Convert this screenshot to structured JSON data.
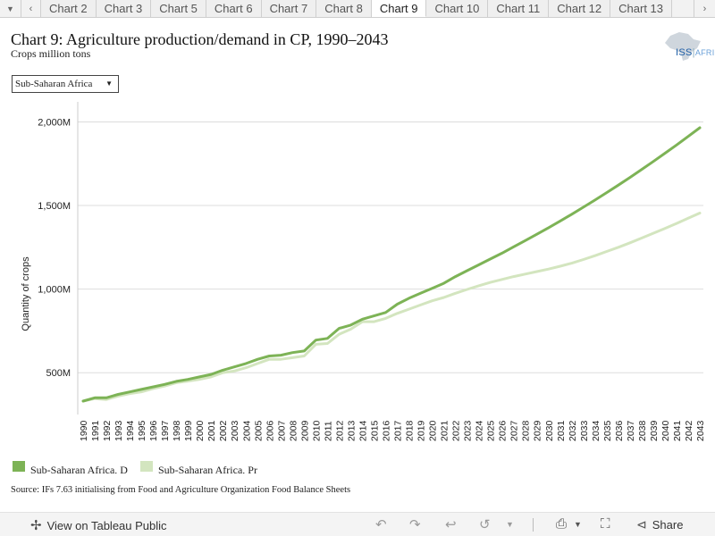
{
  "tabs": {
    "items": [
      "Chart 2",
      "Chart 3",
      "Chart 5",
      "Chart 6",
      "Chart 7",
      "Chart 8",
      "Chart 9",
      "Chart 10",
      "Chart 11",
      "Chart 12",
      "Chart 13"
    ],
    "active": "Chart 9",
    "menu_icon": "caret-down-icon",
    "prev_icon": "chevron-left-icon",
    "next_icon": "chevron-right-icon"
  },
  "header": {
    "title": "Chart 9: Agriculture production/demand in CP, 1990–2043",
    "subtitle": "Crops million tons",
    "logo_text": "ISS",
    "logo_suffix": "AFRICA"
  },
  "filter": {
    "selected": "Sub-Saharan Africa"
  },
  "chart_data": {
    "type": "line",
    "ylabel": "Quantity of crops",
    "y_ticks": [
      "500M",
      "1,000M",
      "1,500M",
      "2,000M"
    ],
    "y_tick_values": [
      500,
      1000,
      1500,
      2000
    ],
    "ylim": [
      250,
      2120
    ],
    "grid": true,
    "legend_position": "bottom-left",
    "x": [
      "1990",
      "1991",
      "1992",
      "1993",
      "1994",
      "1995",
      "1996",
      "1997",
      "1998",
      "1999",
      "2000",
      "2001",
      "2002",
      "2003",
      "2004",
      "2005",
      "2006",
      "2007",
      "2008",
      "2009",
      "2010",
      "2011",
      "2012",
      "2013",
      "2014",
      "2015",
      "2016",
      "2017",
      "2018",
      "2019",
      "2020",
      "2021",
      "2022",
      "2023",
      "2024",
      "2025",
      "2026",
      "2027",
      "2028",
      "2029",
      "2030",
      "2031",
      "2032",
      "2033",
      "2034",
      "2035",
      "2036",
      "2037",
      "2038",
      "2039",
      "2040",
      "2041",
      "2042",
      "2043"
    ],
    "series": [
      {
        "name": "Sub-Saharan Africa, D",
        "color": "#7db356",
        "values": [
          330,
          350,
          350,
          370,
          385,
          400,
          415,
          430,
          448,
          460,
          475,
          490,
          515,
          535,
          555,
          580,
          600,
          605,
          620,
          630,
          695,
          705,
          765,
          785,
          820,
          840,
          860,
          910,
          945,
          975,
          1005,
          1035,
          1075,
          1110,
          1145,
          1180,
          1215,
          1253,
          1290,
          1328,
          1367,
          1407,
          1448,
          1490,
          1533,
          1577,
          1622,
          1668,
          1715,
          1763,
          1812,
          1862,
          1913,
          1965
        ]
      },
      {
        "name": "Sub-Saharan Africa, Pr",
        "color": "#d3e5bf",
        "values": [
          330,
          345,
          340,
          360,
          375,
          385,
          405,
          420,
          440,
          450,
          460,
          475,
          500,
          510,
          530,
          555,
          580,
          580,
          590,
          600,
          670,
          675,
          730,
          760,
          805,
          805,
          825,
          855,
          880,
          905,
          930,
          950,
          975,
          998,
          1020,
          1040,
          1058,
          1075,
          1090,
          1105,
          1120,
          1137,
          1155,
          1177,
          1200,
          1225,
          1250,
          1277,
          1305,
          1334,
          1363,
          1393,
          1424,
          1455
        ]
      }
    ]
  },
  "source": "Source: IFs 7.63 initialising from Food and Agriculture Organization Food Balance Sheets",
  "footer": {
    "view_label": "View on Tableau Public",
    "share_label": "Share",
    "icons": [
      "undo-icon",
      "redo-icon",
      "revert-icon",
      "refresh-icon",
      "download-icon",
      "fullscreen-icon",
      "share-icon"
    ]
  }
}
